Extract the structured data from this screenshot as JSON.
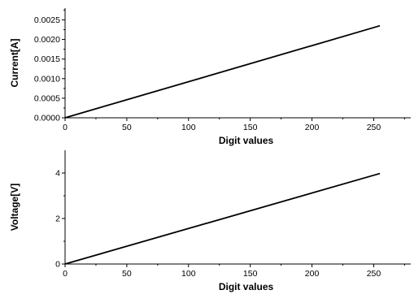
{
  "chart_data": [
    {
      "type": "line",
      "xlabel": "Digit values",
      "ylabel": "Current[A]",
      "xlim": [
        0,
        280
      ],
      "ylim": [
        0,
        0.0028
      ],
      "xticks": [
        0,
        50,
        100,
        150,
        200,
        250
      ],
      "xtick_labels": [
        "0",
        "50",
        "100",
        "150",
        "200",
        "250"
      ],
      "yticks": [
        0,
        0.0005,
        0.001,
        0.0015,
        0.002,
        0.0025
      ],
      "ytick_labels": [
        "0.0000",
        "0.0005",
        "0.0010",
        "0.0015",
        "0.0020",
        "0.0025"
      ],
      "grid": false,
      "series": [
        {
          "x": [
            0,
            255
          ],
          "y": [
            0,
            0.00235
          ]
        }
      ]
    },
    {
      "type": "line",
      "xlabel": "Digit values",
      "ylabel": "Voltage[V]",
      "xlim": [
        0,
        280
      ],
      "ylim": [
        0,
        5
      ],
      "xticks": [
        0,
        50,
        100,
        150,
        200,
        250
      ],
      "xtick_labels": [
        "0",
        "50",
        "100",
        "150",
        "200",
        "250"
      ],
      "yticks": [
        0,
        2,
        4
      ],
      "ytick_labels": [
        "0",
        "2",
        "4"
      ],
      "grid": false,
      "series": [
        {
          "x": [
            0,
            255
          ],
          "y": [
            0,
            3.98
          ]
        }
      ]
    }
  ]
}
